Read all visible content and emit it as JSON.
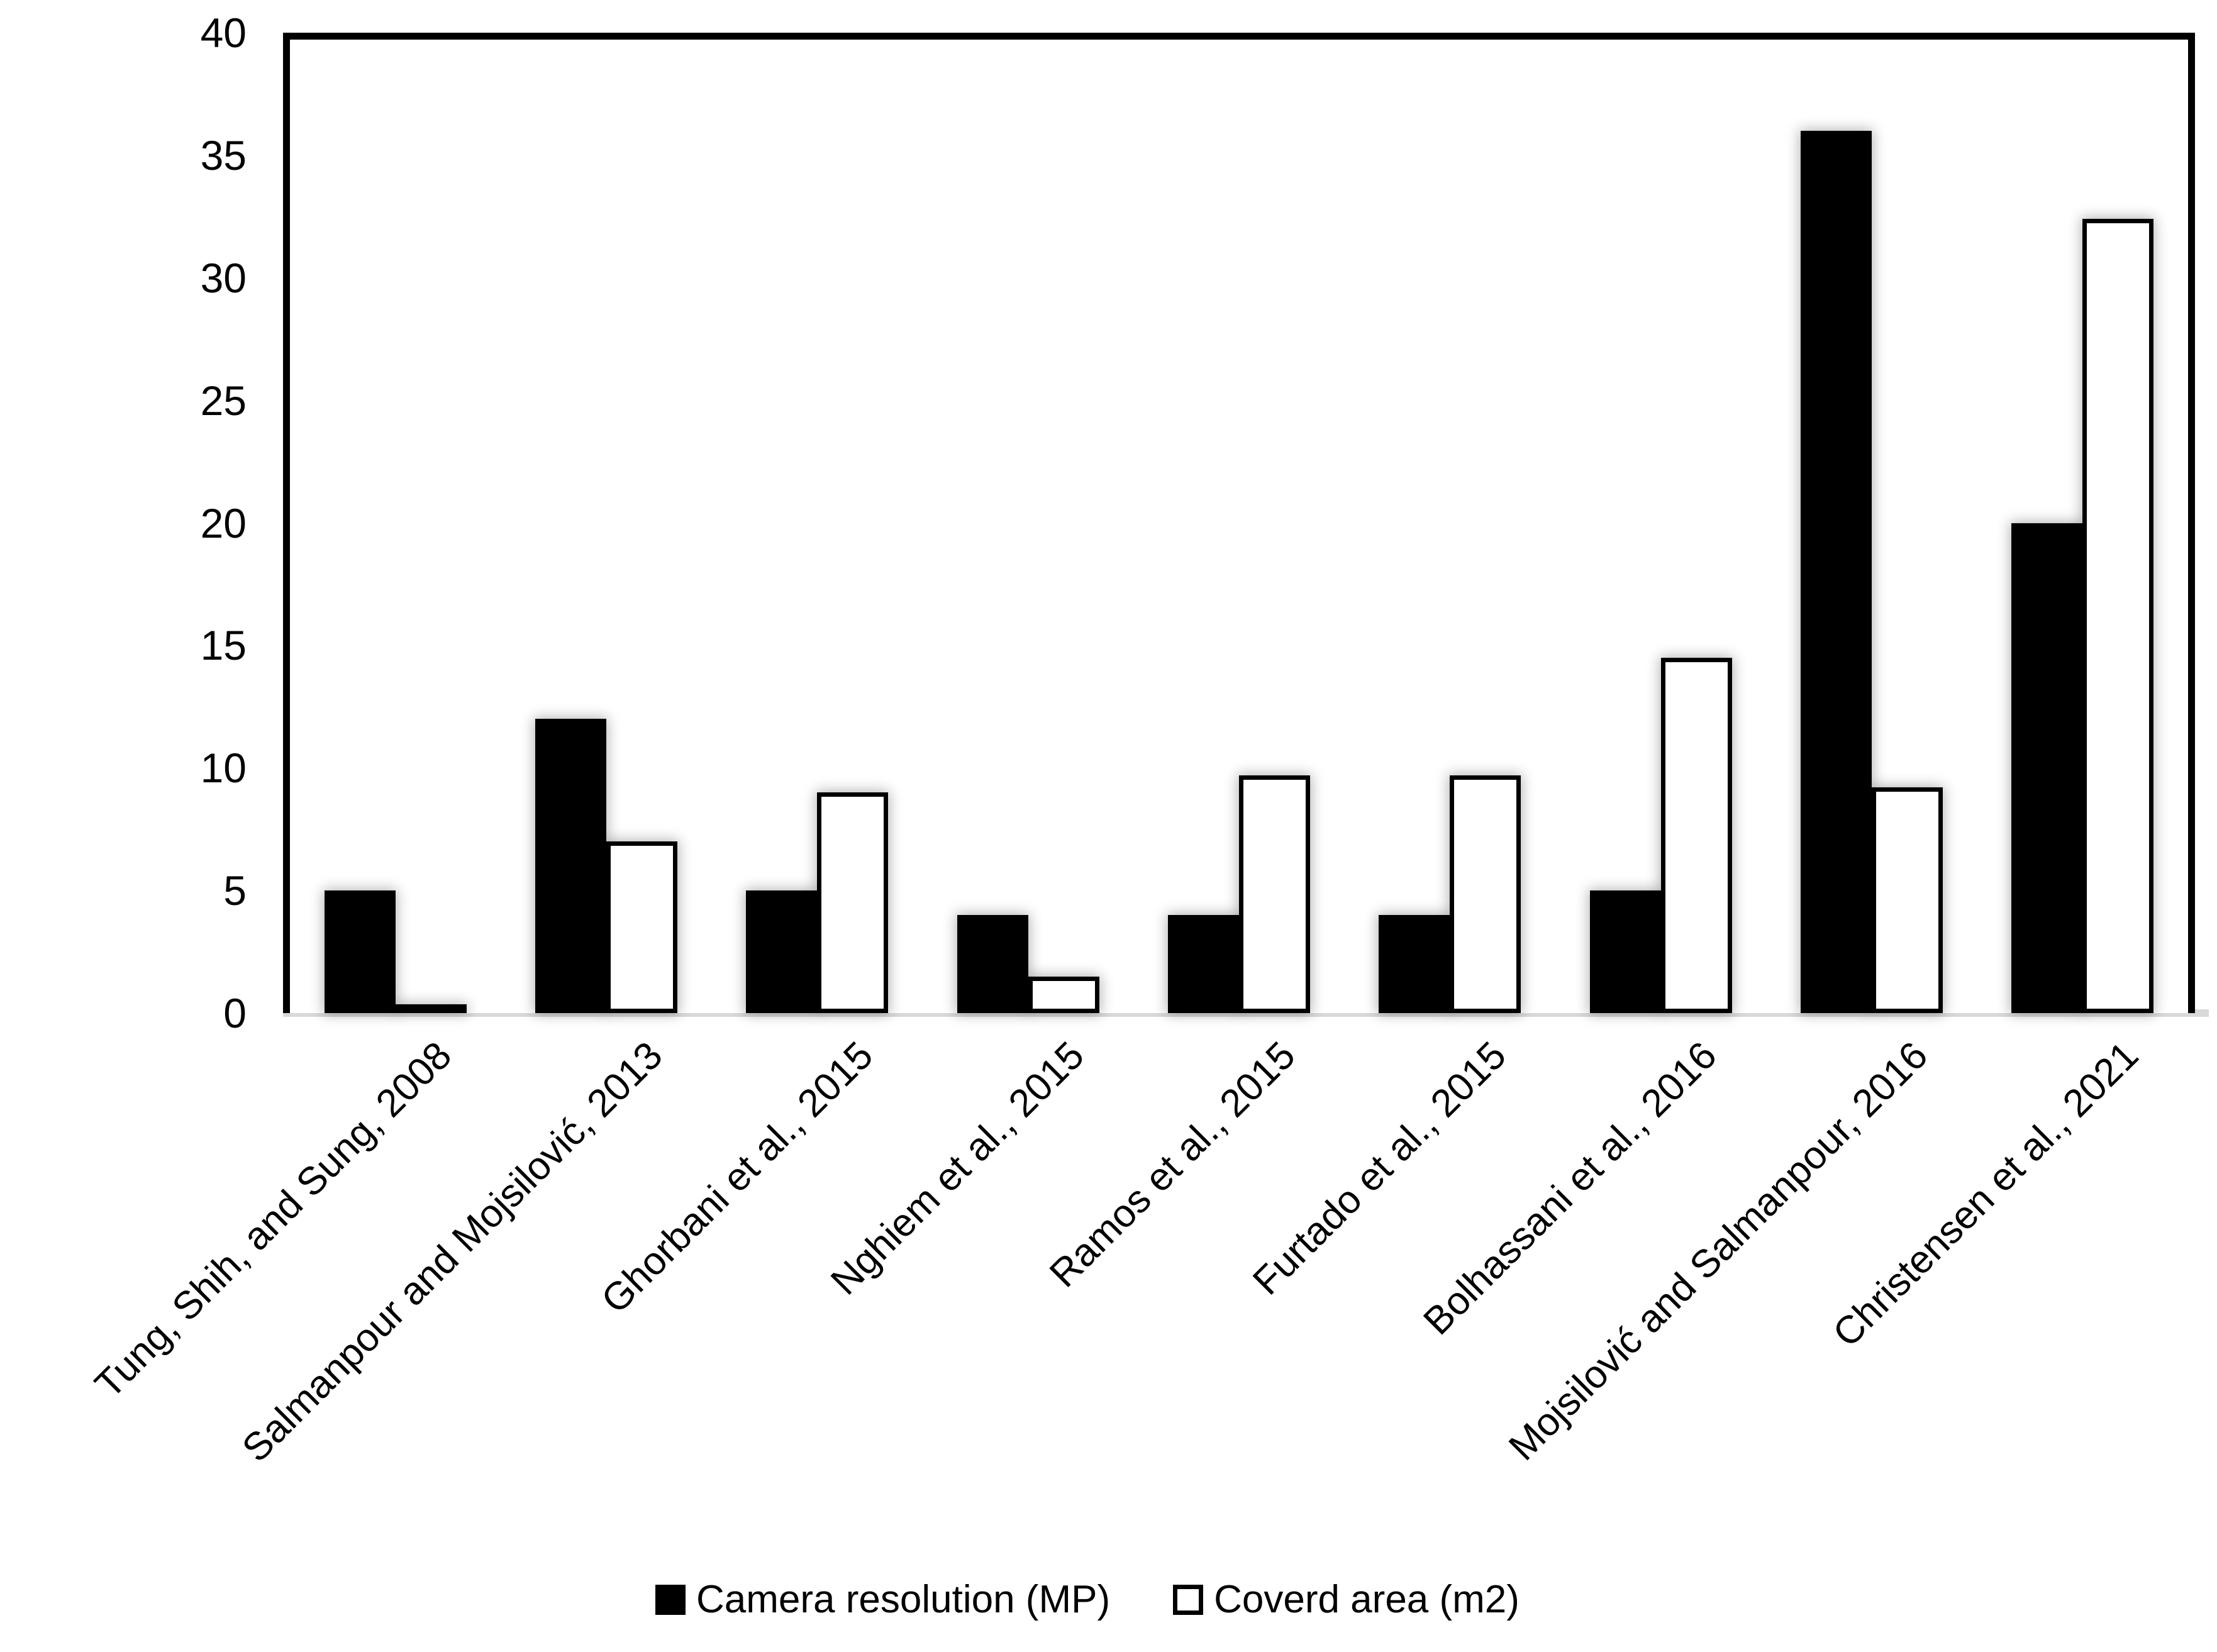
{
  "chart_data": {
    "type": "bar",
    "title": "",
    "xlabel": "",
    "ylabel": "",
    "categories": [
      "Tung, Shih, and Sung, 2008",
      "Salmanpour and Mojsilović, 2013",
      "Ghorbani et al., 2015",
      "Nghiem et al., 2015",
      "Ramos et al., 2015",
      "Furtado et al., 2015",
      "Bolhassani et al., 2016",
      "Mojsilović and Salmanpour, 2016",
      "Christensen et al., 2021"
    ],
    "series": [
      {
        "name": "Camera resolution (MP)",
        "style": "filled",
        "color": "#000000",
        "values": [
          5,
          12,
          5,
          4,
          4,
          4,
          5,
          36,
          20
        ]
      },
      {
        "name": "Coverd area (m2)",
        "style": "outlined",
        "color": "#ffffff",
        "values": [
          0.2,
          7,
          9,
          1.5,
          9.7,
          9.7,
          14.5,
          9.2,
          32.4
        ]
      }
    ],
    "ylim": [
      0,
      40
    ],
    "yticks": [
      0,
      5,
      10,
      15,
      20,
      25,
      30,
      35,
      40
    ],
    "grid": false,
    "legend_position": "bottom"
  },
  "colors": {
    "ink": "#000000",
    "baseline": "#d9d9d9",
    "background": "#ffffff"
  }
}
